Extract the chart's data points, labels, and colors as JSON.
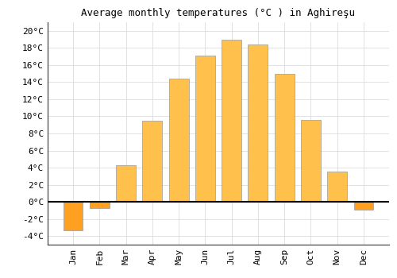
{
  "title": "Average monthly temperatures (°C ) in Aghireşu",
  "months": [
    "Jan",
    "Feb",
    "Mar",
    "Apr",
    "May",
    "Jun",
    "Jul",
    "Aug",
    "Sep",
    "Oct",
    "Nov",
    "Dec"
  ],
  "values": [
    -3.3,
    -0.7,
    4.3,
    9.5,
    14.4,
    17.1,
    19.0,
    18.4,
    15.0,
    9.6,
    3.5,
    -0.9
  ],
  "bar_color_positive": "#FFC04C",
  "bar_color_negative": "#FFA020",
  "bar_edge_color": "#999999",
  "ylim": [
    -5,
    21
  ],
  "yticks": [
    -4,
    -2,
    0,
    2,
    4,
    6,
    8,
    10,
    12,
    14,
    16,
    18,
    20
  ],
  "background_color": "#FFFFFF",
  "grid_color": "#DDDDDD",
  "title_fontsize": 9,
  "tick_fontsize": 8,
  "bar_width": 0.75
}
